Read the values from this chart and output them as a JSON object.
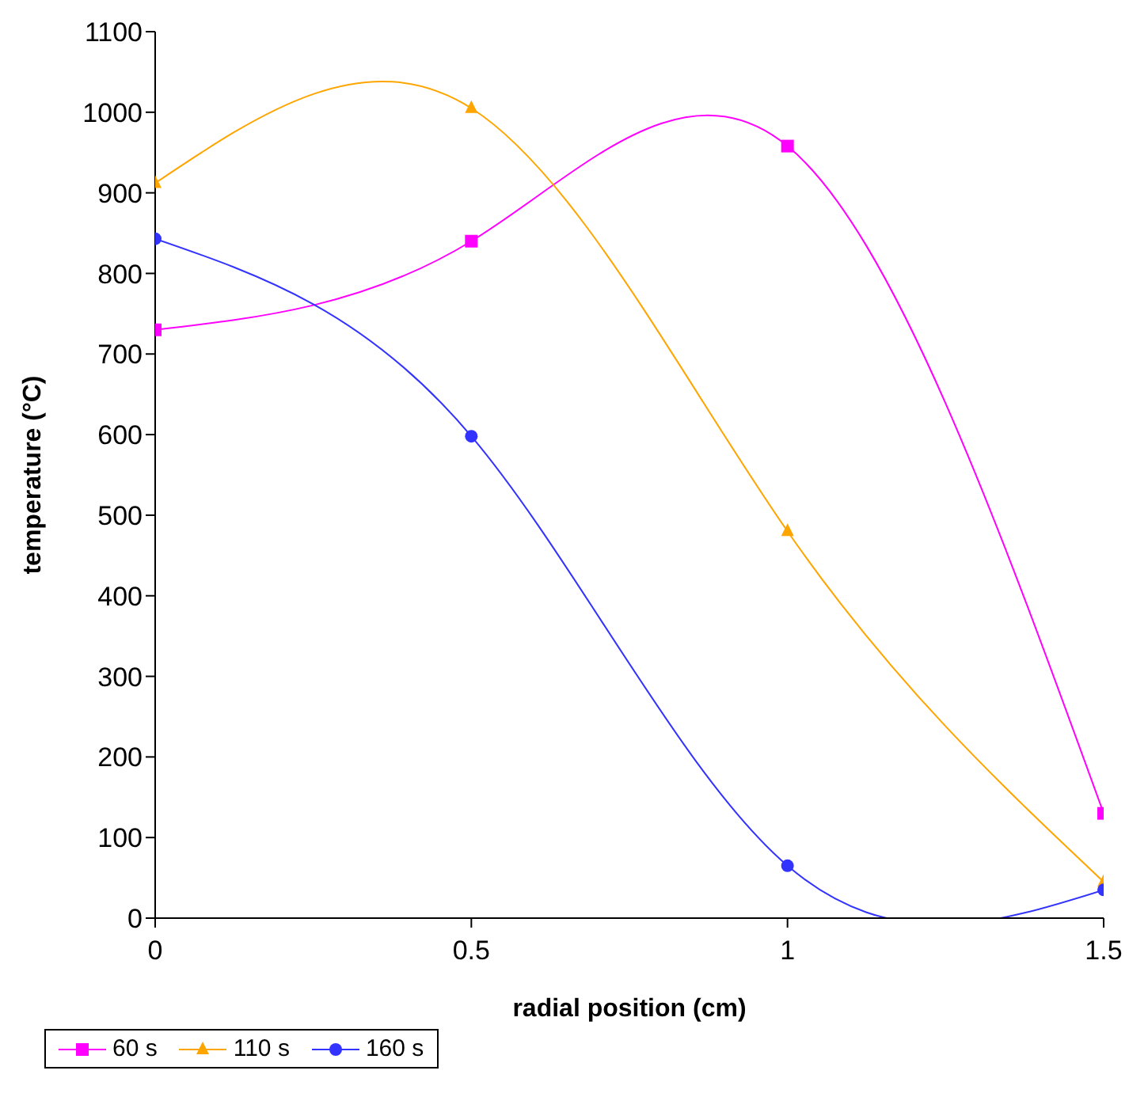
{
  "chart_data": {
    "type": "line",
    "xlabel": "radial position (cm)",
    "ylabel": "temperature (°C)",
    "x": [
      0,
      0.5,
      1,
      1.5
    ],
    "series": [
      {
        "name": "60 s",
        "color": "#ff00ff",
        "marker": "square",
        "values": [
          730,
          840,
          958,
          130
        ]
      },
      {
        "name": "110 s",
        "color": "#ffa500",
        "marker": "triangle",
        "values": [
          912,
          1005,
          480,
          45
        ]
      },
      {
        "name": "160 s",
        "color": "#3333ff",
        "marker": "circle",
        "values": [
          843,
          598,
          65,
          35
        ]
      }
    ],
    "xlim": [
      0,
      1.5
    ],
    "xticks": [
      0,
      0.5,
      1,
      1.5
    ],
    "ylim": [
      0,
      1100
    ],
    "yticks": [
      0,
      100,
      200,
      300,
      400,
      500,
      600,
      700,
      800,
      900,
      1000,
      1100
    ],
    "grid": false,
    "legend": "bottom"
  }
}
